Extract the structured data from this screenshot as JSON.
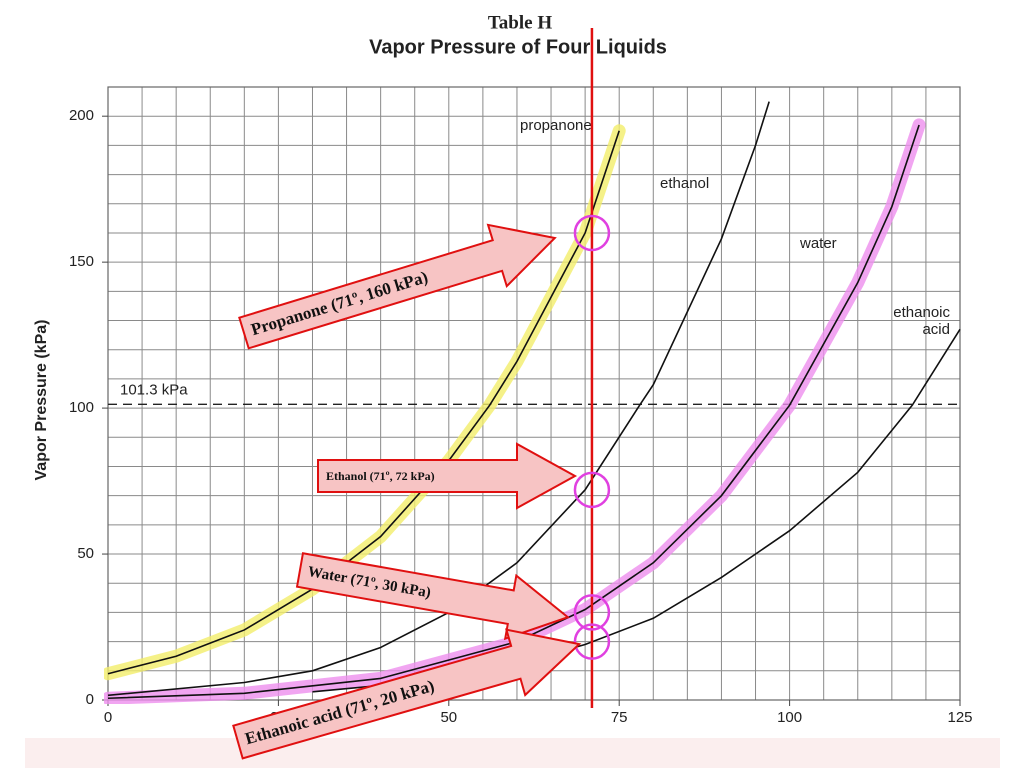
{
  "chart_data": {
    "type": "line",
    "title": "Table H",
    "subtitle": "Vapor Pressure of Four Liquids",
    "y_label": "Vapor Pressure (kPa)",
    "xlim": [
      0,
      125
    ],
    "ylim": [
      0,
      210
    ],
    "xticks": [
      0,
      25,
      50,
      75,
      100,
      125
    ],
    "yticks": [
      0,
      50,
      100,
      150,
      200
    ],
    "grid": true,
    "minor_xstep": 5,
    "minor_ystep": 10,
    "series": [
      {
        "name": "propanone",
        "color": "#111111",
        "highlight": "#f3ee6a",
        "x": [
          0,
          10,
          20,
          30,
          40,
          50,
          56,
          60,
          70,
          75
        ],
        "values": [
          9,
          15,
          24,
          38,
          56,
          82,
          101,
          116,
          160,
          195
        ]
      },
      {
        "name": "ethanol",
        "color": "#111111",
        "x": [
          0,
          20,
          30,
          40,
          50,
          60,
          70,
          78,
          80,
          90,
          95,
          97
        ],
        "values": [
          1.6,
          6,
          10,
          18,
          30,
          47,
          72,
          101,
          108,
          158,
          190,
          205
        ]
      },
      {
        "name": "water",
        "color": "#111111",
        "highlight": "#ee8fee",
        "x": [
          0,
          20,
          40,
          60,
          70,
          80,
          90,
          100,
          110,
          115,
          119
        ],
        "values": [
          0.6,
          2.3,
          7.4,
          20,
          31,
          47,
          70,
          101,
          143,
          169,
          197
        ]
      },
      {
        "name": "ethanoic acid",
        "color": "#111111",
        "x": [
          30,
          40,
          50,
          60,
          70,
          80,
          90,
          100,
          110,
          118,
          125
        ],
        "values": [
          2.8,
          5,
          8,
          12.5,
          19,
          28,
          42,
          58,
          78,
          101,
          127
        ]
      }
    ],
    "reference_line": {
      "value": 101.3,
      "label": "101.3 kPa"
    },
    "marker_line": {
      "x": 71,
      "color": "#e01010"
    },
    "annotations": [
      {
        "text": "Propanone (71º, 160 kPa)",
        "x": 71,
        "y": 160
      },
      {
        "text": "Ethanol  (71º, 72 kPa)",
        "x": 71,
        "y": 72
      },
      {
        "text": "Water  (71º, 30 kPa)",
        "x": 71,
        "y": 30
      },
      {
        "text": "Ethanoic acid (71º, 20 kPa)",
        "x": 71,
        "y": 20
      }
    ]
  }
}
